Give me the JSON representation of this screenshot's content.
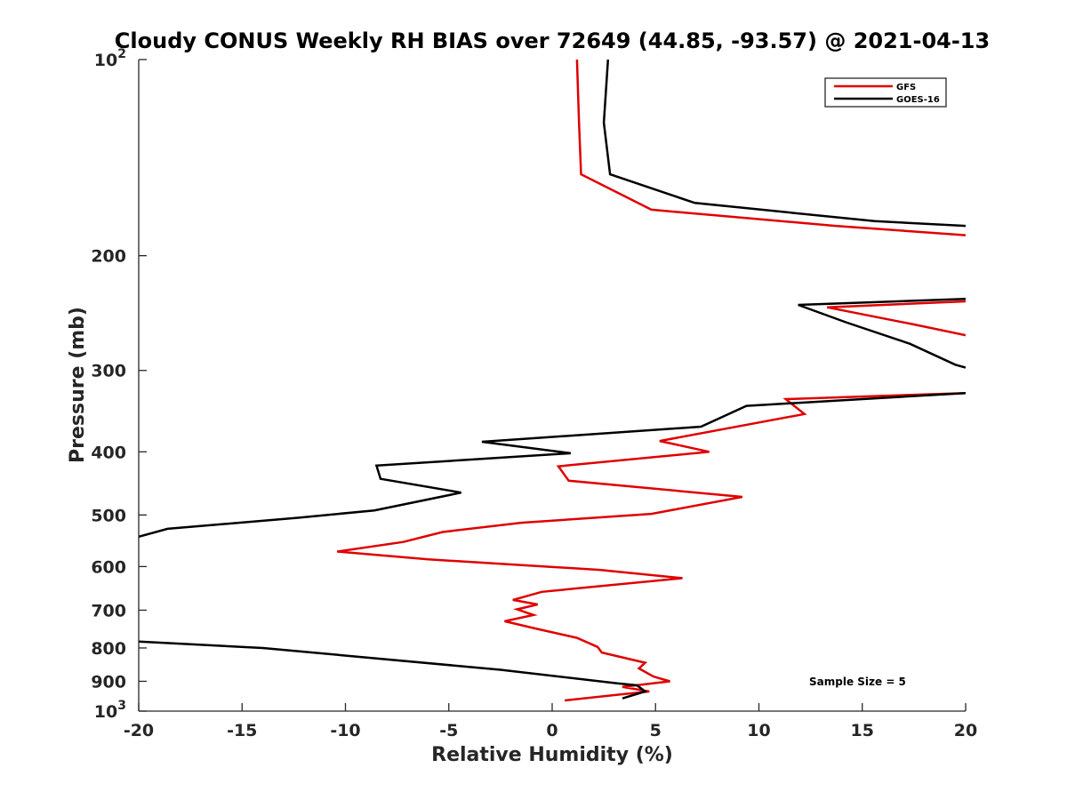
{
  "chart_data": {
    "type": "line",
    "title": "Cloudy CONUS Weekly RH BIAS over 72649 (44.85, -93.57) @ 2021-04-13",
    "xlabel": "Relative Humidity (%)",
    "ylabel": "Pressure (mb)",
    "xlim": [
      -20,
      20
    ],
    "ylim": [
      100,
      1000
    ],
    "y_scale": "log",
    "y_reversed": true,
    "grid": false,
    "legend_position": "top-right",
    "annotation": "Sample Size = 5",
    "x_ticks": [
      "-20",
      "-15",
      "-10",
      "-5",
      "0",
      "5",
      "10",
      "15",
      "20"
    ],
    "y_ticks": [
      {
        "value": 100,
        "base": "10",
        "exp": "2"
      },
      {
        "value": 200,
        "label": "200"
      },
      {
        "value": 300,
        "label": "300"
      },
      {
        "value": 400,
        "label": "400"
      },
      {
        "value": 500,
        "label": "500"
      },
      {
        "value": 600,
        "label": "600"
      },
      {
        "value": 700,
        "label": "700"
      },
      {
        "value": 800,
        "label": "800"
      },
      {
        "value": 900,
        "label": "900"
      },
      {
        "value": 1000,
        "base": "10",
        "exp": "3"
      }
    ],
    "series": [
      {
        "name": "GFS",
        "color": "#e00000",
        "points": [
          [
            1.2,
            100
          ],
          [
            1.3,
            125
          ],
          [
            1.4,
            150
          ],
          [
            4.8,
            170
          ],
          [
            13.7,
            180
          ],
          [
            20,
            186
          ],
          [
            null,
            null
          ],
          [
            20,
            235
          ],
          [
            13.3,
            240
          ],
          [
            17.5,
            255
          ],
          [
            20,
            265
          ],
          [
            null,
            null
          ],
          [
            20,
            325
          ],
          [
            11.3,
            332
          ],
          [
            12.2,
            350
          ],
          [
            5.2,
            385
          ],
          [
            7.6,
            400
          ],
          [
            0.3,
            421
          ],
          [
            0.8,
            443
          ],
          [
            9.2,
            469
          ],
          [
            4.8,
            498
          ],
          [
            -1.5,
            514
          ],
          [
            -5.3,
            531
          ],
          [
            -7.2,
            550
          ],
          [
            -10.4,
            569
          ],
          [
            -6.0,
            585
          ],
          [
            2.3,
            607
          ],
          [
            6.3,
            625
          ],
          [
            -0.5,
            656
          ],
          [
            -1.9,
            675
          ],
          [
            -0.7,
            686
          ],
          [
            -1.7,
            698
          ],
          [
            -0.9,
            712
          ],
          [
            -2.3,
            728
          ],
          [
            -0.8,
            747
          ],
          [
            1.2,
            772
          ],
          [
            2.2,
            797
          ],
          [
            2.4,
            813
          ],
          [
            4.5,
            843
          ],
          [
            4.2,
            860
          ],
          [
            4.9,
            885
          ],
          [
            5.7,
            900
          ],
          [
            3.4,
            918
          ],
          [
            4.7,
            933
          ],
          [
            3.1,
            944
          ],
          [
            0.6,
            963
          ]
        ]
      },
      {
        "name": "GOES-16",
        "color": "#000000",
        "points": [
          [
            2.7,
            100
          ],
          [
            2.5,
            125
          ],
          [
            2.8,
            150
          ],
          [
            6.9,
            166
          ],
          [
            15.6,
            177
          ],
          [
            20,
            180
          ],
          [
            null,
            null
          ],
          [
            20,
            233
          ],
          [
            11.9,
            238
          ],
          [
            14.2,
            253
          ],
          [
            17.3,
            273
          ],
          [
            19.5,
            294
          ],
          [
            20,
            297
          ],
          [
            null,
            null
          ],
          [
            20,
            325
          ],
          [
            9.4,
            340
          ],
          [
            7.2,
            366
          ],
          [
            -3.4,
            386
          ],
          [
            0.9,
            402
          ],
          [
            -8.5,
            420
          ],
          [
            -8.3,
            440
          ],
          [
            -4.4,
            462
          ],
          [
            -8.6,
            492
          ],
          [
            -12.3,
            505
          ],
          [
            -18.6,
            525
          ],
          [
            -20,
            540
          ],
          [
            null,
            null
          ],
          [
            -20,
            782
          ],
          [
            -14.0,
            800
          ],
          [
            -2.5,
            864
          ],
          [
            3.1,
            906
          ],
          [
            4.1,
            913
          ],
          [
            4.5,
            933
          ],
          [
            3.4,
            956
          ]
        ]
      }
    ]
  }
}
